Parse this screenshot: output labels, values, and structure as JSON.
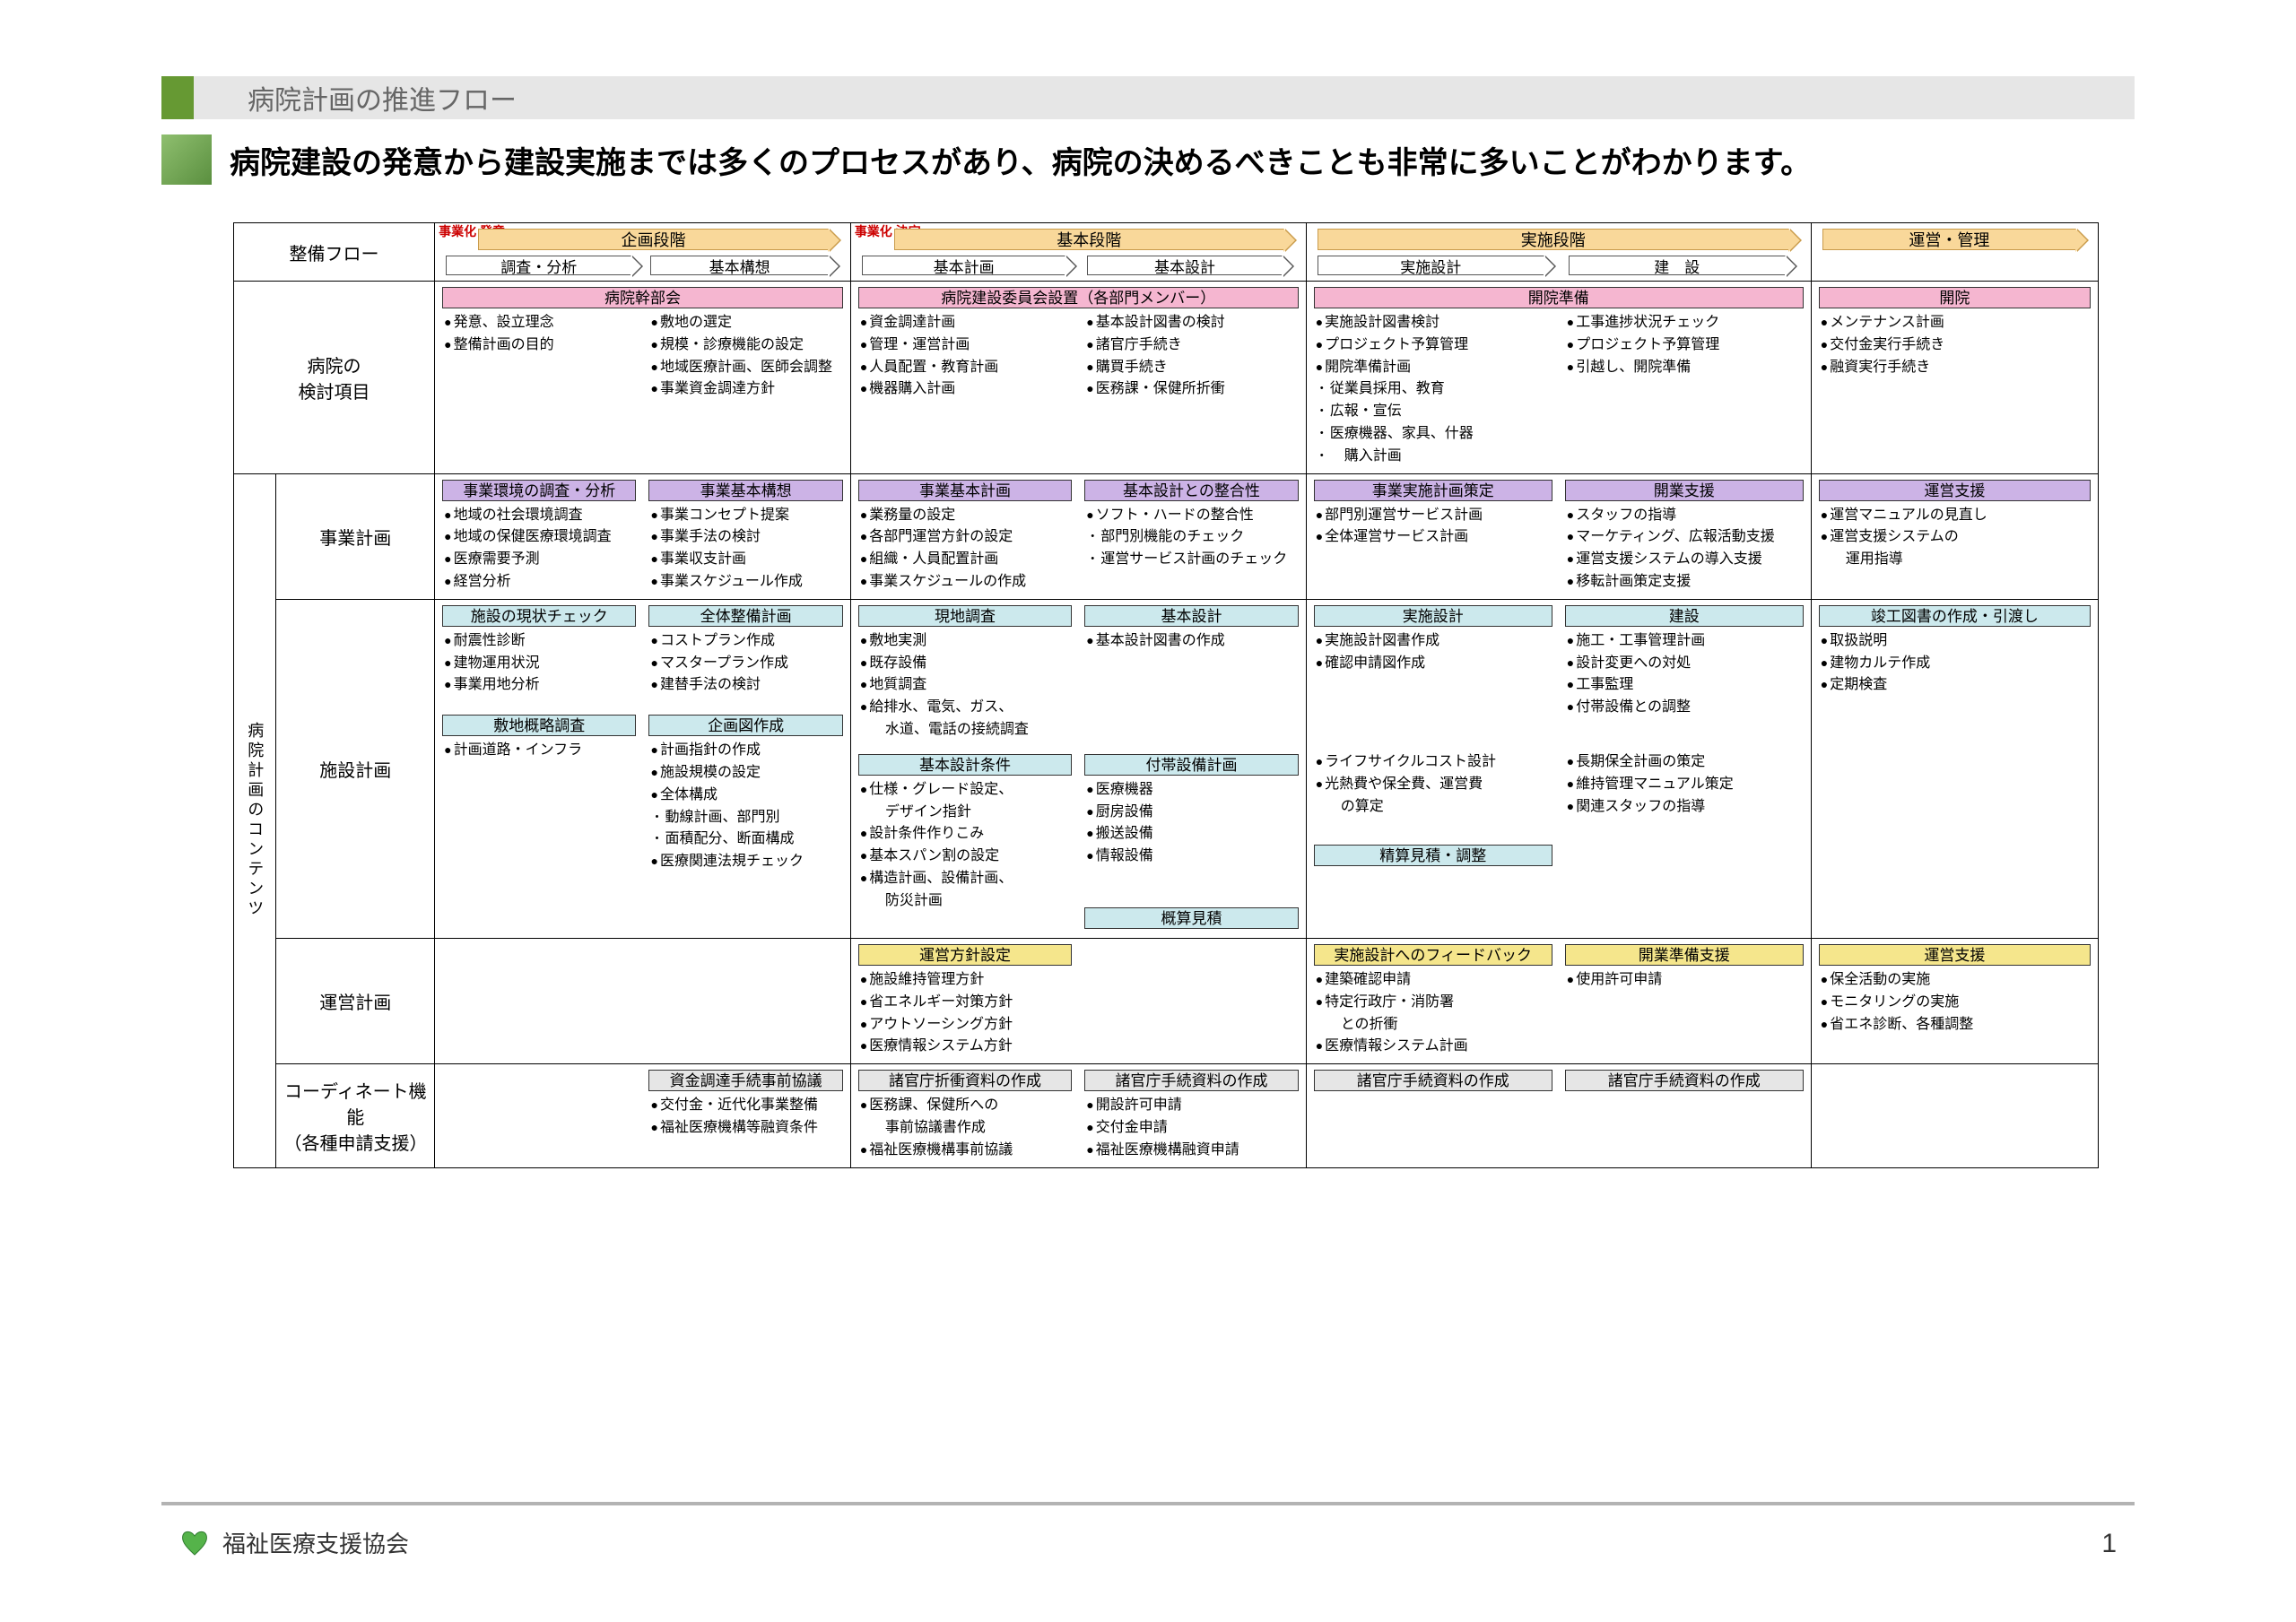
{
  "colors": {
    "accent_green": "#669933",
    "header_grey": "#e6e6e6",
    "arrow_fill": "#f9d89a",
    "arrow_border": "#c99b4b",
    "bar_pink": "#f5b6d0",
    "bar_purple": "#ccb3e6",
    "bar_cyan": "#cce9ed",
    "bar_yellow": "#f5e68c",
    "bar_grey": "#e6e6e6",
    "red_label": "#cc0000",
    "footer_rule": "#b3b3b3"
  },
  "header": {
    "title": "病院計画の推進フロー"
  },
  "subtitle": "病院建設の発意から建設実施までは多くのプロセスがあり、病院の決めるべきことも非常に多いことがわかります。",
  "row_labels": {
    "flow": "整備フロー",
    "review": "病院の\n検討項目",
    "business": "事業計画",
    "facility": "施設計画",
    "operation": "運営計画",
    "coordinate": "コーディネート機能\n（各種申請支援）",
    "vertical": "病院計画のコンテンツ"
  },
  "red_markers": {
    "left": "事業化\n発意",
    "mid": "事業化\n決定"
  },
  "phases": {
    "p1": "企画段階",
    "p2": "基本段階",
    "p3": "実施段階",
    "p4": "運営・管理"
  },
  "subphases": {
    "s1a": "調査・分析",
    "s1b": "基本構想",
    "s2a": "基本計画",
    "s2b": "基本設計",
    "s3a": "実施設計",
    "s3b": "建　設"
  },
  "review": {
    "c1": {
      "bar": "病院幹部会",
      "left": [
        "発意、設立理念",
        "整備計画の目的"
      ],
      "right": [
        "敷地の選定",
        "規模・診療機能の設定",
        "地域医療計画、医師会調整",
        "事業資金調達方針"
      ]
    },
    "c2": {
      "bar": "病院建設委員会設置（各部門メンバー）",
      "left": [
        "資金調達計画",
        "管理・運営計画",
        "人員配置・教育計画",
        "機器購入計画"
      ],
      "right": [
        "基本設計図書の検討",
        "諸官庁手続き",
        "購買手続き",
        "医務課・保健所折衝"
      ]
    },
    "c3": {
      "bar": "開院準備",
      "left": [
        "実施設計図書検討",
        "プロジェクト予算管理",
        "開院準備計画"
      ],
      "left_sub": [
        "従業員採用、教育",
        "広報・宣伝",
        "医療機器、家具、什器",
        "　購入計画"
      ],
      "right": [
        "工事進捗状況チェック",
        "プロジェクト予算管理",
        "引越し、開院準備"
      ]
    },
    "c4": {
      "bar": "開院",
      "items": [
        "メンテナンス計画",
        "交付金実行手続き",
        "融資実行手続き"
      ]
    }
  },
  "business": {
    "c1": {
      "bar_l": "事業環境の調査・分析",
      "bar_r": "事業基本構想",
      "left": [
        "地域の社会環境調査",
        "地域の保健医療環境調査",
        "医療需要予測",
        "経営分析"
      ],
      "right": [
        "事業コンセプト提案",
        "事業手法の検討",
        "事業収支計画",
        "事業スケジュール作成"
      ]
    },
    "c2": {
      "bar_l": "事業基本計画",
      "bar_r": "基本設計との整合性",
      "left": [
        "業務量の設定",
        "各部門運営方針の設定",
        "組織・人員配置計画",
        "事業スケジュールの作成"
      ],
      "right": [
        "ソフト・ハードの整合性"
      ],
      "right_sub": [
        "部門別機能のチェック",
        "運営サービス計画のチェック"
      ]
    },
    "c3": {
      "bar_l": "事業実施計画策定",
      "bar_r": "開業支援",
      "left": [
        "部門別運営サービス計画",
        "全体運営サービス計画"
      ],
      "right": [
        "スタッフの指導",
        "マーケティング、広報活動支援",
        "運営支援システムの導入支援",
        "移転計画策定支援"
      ]
    },
    "c4": {
      "bar": "運営支援",
      "items": [
        "運営マニュアルの見直し",
        "運営支援システムの",
        "　運用指導"
      ]
    }
  },
  "facility": {
    "c1a": {
      "bar_l": "施設の現状チェック",
      "bar_r": "全体整備計画",
      "left": [
        "耐震性診断",
        "建物運用状況",
        "事業用地分析"
      ],
      "right": [
        "コストプラン作成",
        "マスタープラン作成",
        "建替手法の検討"
      ]
    },
    "c1b": {
      "bar_l": "敷地概略調査",
      "bar_r": "企画図作成",
      "left": [
        "計画道路・インフラ"
      ],
      "right": [
        "計画指針の作成",
        "施設規模の設定",
        "全体構成"
      ],
      "right_sub": [
        "動線計画、部門別",
        "面積配分、断面構成"
      ],
      "right2": [
        "医療関連法規チェック"
      ]
    },
    "c2a": {
      "bar_l": "現地調査",
      "bar_r": "基本設計",
      "left": [
        "敷地実測",
        "既存設備",
        "地質調査",
        "給排水、電気、ガス、",
        "　水道、電話の接続調査"
      ],
      "right": [
        "基本設計図書の作成"
      ]
    },
    "c2b": {
      "bar_l": "基本設計条件",
      "bar_r": "付帯設備計画",
      "left": [
        "仕様・グレード設定、",
        "　デザイン指針",
        "設計条件作りこみ",
        "基本スパン割の設定",
        "構造計画、設備計画、",
        "　防災計画"
      ],
      "right": [
        "医療機器",
        "厨房設備",
        "搬送設備",
        "情報設備"
      ],
      "foot_bar": "概算見積"
    },
    "c3a": {
      "bar_l": "実施設計",
      "bar_r": "建設",
      "left": [
        "実施設計図書作成",
        "確認申請図作成"
      ],
      "right": [
        "施工・工事管理計画",
        "設計変更への対処",
        "工事監理",
        "付帯設備との調整"
      ]
    },
    "c3b": {
      "left": [
        "ライフサイクルコスト設計",
        "光熱費や保全費、運営費",
        "　の算定"
      ],
      "right": [
        "長期保全計画の策定",
        "維持管理マニュアル策定",
        "関連スタッフの指導"
      ],
      "foot_bar": "精算見積・調整"
    },
    "c4": {
      "bar": "竣工図書の作成・引渡し",
      "items": [
        "取扱説明",
        "建物カルテ作成",
        "定期検査"
      ]
    }
  },
  "operation": {
    "c2": {
      "bar": "運営方針設定",
      "items": [
        "施設維持管理方針",
        "省エネルギー対策方針",
        "アウトソーシング方針",
        "医療情報システム方針"
      ]
    },
    "c3": {
      "bar_l": "実施設計へのフィードバック",
      "bar_r": "開業準備支援",
      "left": [
        "建築確認申請",
        "特定行政庁・消防署",
        "　との折衝",
        "医療情報システム計画"
      ],
      "right": [
        "使用許可申請"
      ]
    },
    "c4": {
      "bar": "運営支援",
      "items": [
        "保全活動の実施",
        "モニタリングの実施",
        "省エネ診断、各種調整"
      ]
    }
  },
  "coordinate": {
    "c1": {
      "bar": "資金調達手続事前協議",
      "items": [
        "交付金・近代化事業整備",
        "福祉医療機構等融資条件"
      ]
    },
    "c2": {
      "bar_l": "諸官庁折衝資料の作成",
      "bar_r": "諸官庁手続資料の作成",
      "left": [
        "医務課、保健所への",
        "　事前協議書作成",
        "福祉医療機構事前協議"
      ],
      "right": [
        "開設許可申請",
        "交付金申請",
        "福祉医療機構融資申請"
      ]
    },
    "c3": {
      "bar_l": "諸官庁手続資料の作成",
      "bar_r": "諸官庁手続資料の作成"
    }
  },
  "footer": {
    "org": "福祉医療支援協会",
    "page": "1"
  }
}
